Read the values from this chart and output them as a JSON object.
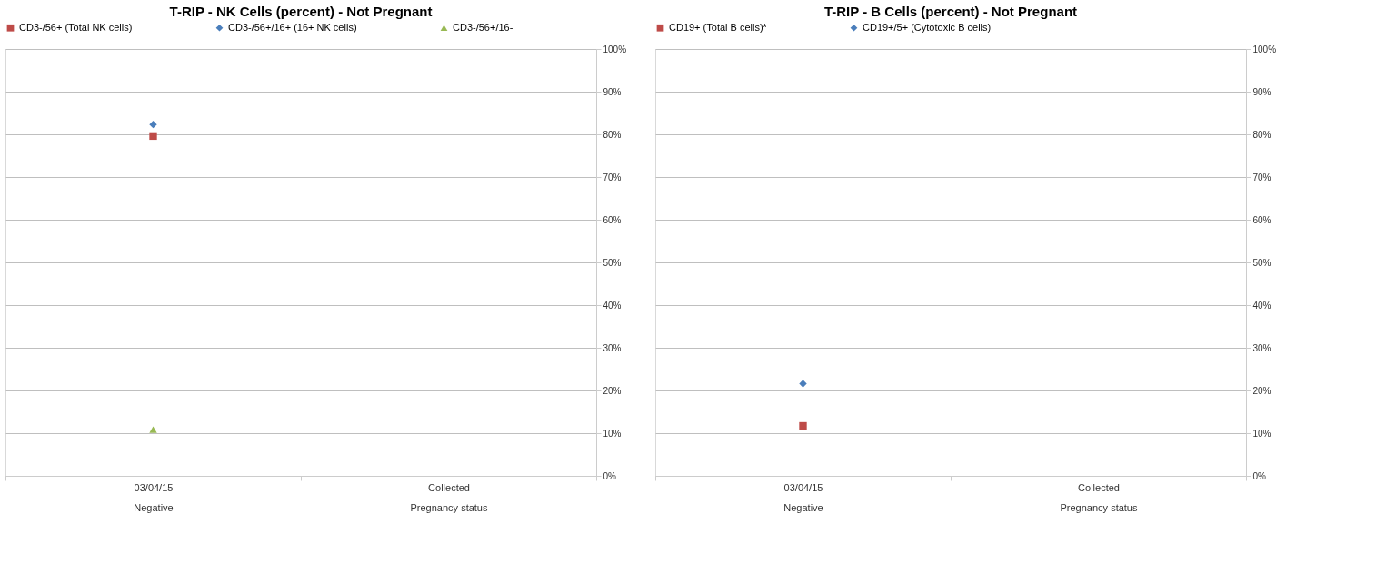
{
  "chart_data": [
    {
      "type": "scatter",
      "title": "T-RIP - NK Cells (percent) - Not Pregnant",
      "categories": [
        "03/04/15\nNegative",
        "Collected\nPregnancy status"
      ],
      "series": [
        {
          "name": "CD3-/56+ (Total NK cells)",
          "color": "#be4b48",
          "marker": "square",
          "values": [
            79.6,
            null
          ]
        },
        {
          "name": "CD3-/56+/16+ (16+ NK cells)",
          "color": "#4a7ebb",
          "marker": "diamond",
          "values": [
            82.3,
            null
          ]
        },
        {
          "name": "CD3-/56+/16-",
          "color": "#98b954",
          "marker": "triangle",
          "values": [
            10.8,
            null
          ]
        }
      ],
      "ylim": [
        0,
        100
      ],
      "yticks": [
        {
          "value": 0,
          "label": "0%"
        },
        {
          "value": 10,
          "label": "10%"
        },
        {
          "value": 20,
          "label": "20%"
        },
        {
          "value": 30,
          "label": "30%"
        },
        {
          "value": 40,
          "label": "40%"
        },
        {
          "value": 50,
          "label": "50%"
        },
        {
          "value": 60,
          "label": "60%"
        },
        {
          "value": 70,
          "label": "70%"
        },
        {
          "value": 80,
          "label": "80%"
        },
        {
          "value": 90,
          "label": "90%"
        },
        {
          "value": 100,
          "label": "100%"
        }
      ],
      "grid": "y",
      "legend": "top"
    },
    {
      "type": "scatter",
      "title": "T-RIP - B Cells (percent) - Not Pregnant",
      "categories": [
        "03/04/15\nNegative",
        "Collected\nPregnancy status"
      ],
      "series": [
        {
          "name": "CD19+ (Total B cells)*",
          "color": "#be4b48",
          "marker": "square",
          "values": [
            11.7,
            null
          ]
        },
        {
          "name": "CD19+/5+ (Cytotoxic B cells)",
          "color": "#4a7ebb",
          "marker": "diamond",
          "values": [
            21.6,
            null
          ]
        }
      ],
      "ylim": [
        0,
        100
      ],
      "yticks": [
        {
          "value": 0,
          "label": "0%"
        },
        {
          "value": 10,
          "label": "10%"
        },
        {
          "value": 20,
          "label": "20%"
        },
        {
          "value": 30,
          "label": "30%"
        },
        {
          "value": 40,
          "label": "40%"
        },
        {
          "value": 50,
          "label": "50%"
        },
        {
          "value": 60,
          "label": "60%"
        },
        {
          "value": 70,
          "label": "70%"
        },
        {
          "value": 80,
          "label": "80%"
        },
        {
          "value": 90,
          "label": "90%"
        },
        {
          "value": 100,
          "label": "100%"
        }
      ],
      "grid": "y",
      "legend": "top"
    }
  ]
}
